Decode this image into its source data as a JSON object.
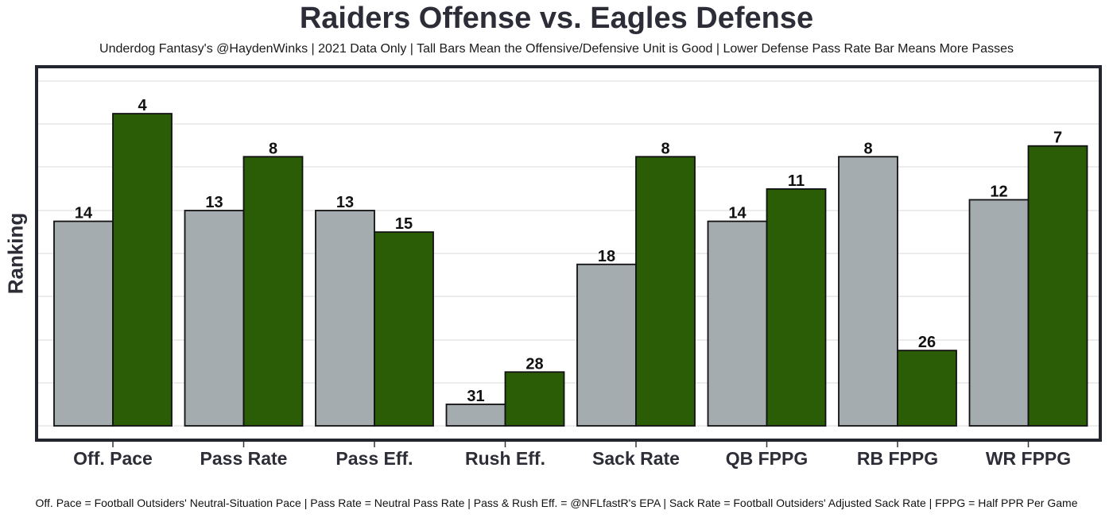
{
  "title": "Raiders Offense vs. Eagles Defense",
  "subtitle": "Underdog Fantasy's @HaydenWinks | 2021 Data Only | Tall Bars Mean the Offensive/Defensive Unit is Good | Lower Defense Pass Rate Bar Means More Passes",
  "footer": "Off. Pace = Football Outsiders' Neutral-Situation Pace | Pass Rate = Neutral Pass Rate | Pass & Rush Eff. = @NFLfastR's EPA | Sack Rate = Football Outsiders' Adjusted Sack Rate | FPPG = Half PPR Per Game",
  "colors": {
    "raiders_offense": "#a5acaf",
    "eagles_defense": "#2a5d06",
    "panel_border": "#23262e"
  },
  "chart_data": {
    "type": "bar",
    "ylabel": "Ranking",
    "xlabel": "",
    "y_scale": "reversed rank (1 = tallest bar)",
    "ylim": [
      33,
      1
    ],
    "grid": true,
    "legend": "none",
    "categories": [
      "Off. Pace",
      "Pass Rate",
      "Pass Eff.",
      "Rush Eff.",
      "Sack Rate",
      "QB FPPG",
      "RB FPPG",
      "WR FPPG"
    ],
    "series": [
      {
        "color": "#a5acaf",
        "values": [
          14,
          13,
          13,
          31,
          18,
          14,
          8,
          12
        ]
      },
      {
        "color": "#2a5d06",
        "values": [
          4,
          8,
          15,
          28,
          8,
          11,
          26,
          7
        ]
      }
    ]
  }
}
